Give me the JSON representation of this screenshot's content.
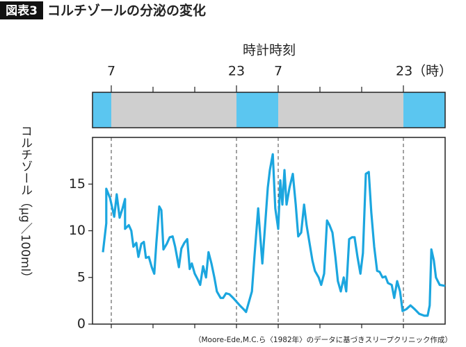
{
  "chart_data": {
    "type": "line",
    "label": "図表3",
    "title": "コルチゾールの分泌の変化",
    "xlabel": "時計時刻",
    "ylabel": "コルチゾール（μg／100ml）",
    "source": "（Moore-Ede,M.C.ら〈1982年〉のデータに基づきスリープクリニック作成）",
    "xlim": [
      -0.45,
      8
    ],
    "xticks": [
      {
        "value": 0,
        "label": "7"
      },
      {
        "value": 3,
        "label": "23"
      },
      {
        "value": 4,
        "label": "7"
      },
      {
        "value": 7,
        "label": "23（時）"
      }
    ],
    "minor_xticks": [
      1,
      2,
      5,
      6
    ],
    "ylim": [
      0,
      20
    ],
    "yticks": [
      0,
      5,
      10,
      15
    ],
    "sleep_color": "#5bc6f0",
    "awake_color": "#cfcfcf",
    "series": [
      {
        "color": "#1ba6df",
        "x": [
          -0.2,
          -0.12,
          -0.12,
          -0.03,
          0.07,
          0.13,
          0.2,
          0.27,
          0.33,
          0.33,
          0.42,
          0.48,
          0.53,
          0.6,
          0.65,
          0.72,
          0.78,
          0.83,
          0.9,
          0.97,
          1.03,
          1.08,
          1.15,
          1.2,
          1.25,
          1.33,
          1.4,
          1.47,
          1.53,
          1.62,
          1.68,
          1.75,
          1.82,
          1.88,
          1.93,
          2.0,
          2.07,
          2.13,
          2.2,
          2.27,
          2.33,
          2.4,
          2.47,
          2.53,
          2.62,
          2.68,
          2.75,
          2.83,
          2.92,
          3.0,
          3.08,
          3.17,
          3.23,
          3.3,
          3.37,
          3.43,
          3.52,
          3.57,
          3.62,
          3.68,
          3.75,
          3.8,
          3.87,
          3.93,
          4.0,
          4.05,
          4.1,
          4.15,
          4.2,
          4.27,
          4.35,
          4.42,
          4.48,
          4.55,
          4.62,
          4.68,
          4.75,
          4.82,
          4.88,
          4.97,
          5.03,
          5.1,
          5.17,
          5.23,
          5.3,
          5.37,
          5.43,
          5.5,
          5.57,
          5.63,
          5.7,
          5.77,
          5.83,
          5.9,
          5.97,
          6.03,
          6.1,
          6.17,
          6.23,
          6.3,
          6.37,
          6.43,
          6.5,
          6.57,
          6.63,
          6.72,
          6.78,
          6.85,
          6.92,
          6.98,
          7.07,
          7.17,
          7.27,
          7.38,
          7.5,
          7.58,
          7.63,
          7.67,
          7.73,
          7.78,
          7.87,
          8.0
        ],
        "values": [
          7.7,
          10.8,
          14.5,
          13.5,
          11.5,
          13.9,
          11.4,
          12.4,
          13.4,
          10.2,
          10.6,
          10.0,
          8.3,
          8.7,
          7.2,
          8.6,
          8.8,
          7.1,
          7.2,
          6.1,
          5.4,
          8.7,
          12.6,
          12.2,
          8.0,
          8.6,
          9.3,
          9.4,
          8.3,
          6.1,
          8.1,
          8.7,
          9.1,
          5.9,
          6.5,
          5.4,
          4.8,
          4.2,
          6.2,
          5.0,
          7.7,
          6.5,
          5.0,
          3.5,
          2.8,
          2.8,
          3.3,
          3.2,
          2.8,
          2.4,
          2.0,
          1.6,
          1.3,
          2.4,
          3.5,
          7.2,
          12.4,
          9.4,
          6.5,
          10.2,
          14.6,
          16.5,
          18.2,
          12.4,
          10.2,
          15.4,
          12.8,
          16.5,
          12.8,
          14.6,
          16.1,
          12.8,
          9.4,
          9.8,
          12.8,
          10.6,
          8.7,
          6.8,
          5.7,
          5.0,
          4.2,
          5.4,
          11.1,
          10.6,
          9.8,
          7.2,
          4.6,
          3.5,
          5.0,
          3.5,
          9.1,
          9.3,
          9.3,
          7.2,
          5.4,
          7.6,
          16.1,
          16.3,
          12.0,
          8.3,
          5.7,
          5.6,
          5.0,
          5.1,
          4.4,
          4.2,
          2.8,
          4.6,
          3.5,
          1.4,
          1.6,
          2.0,
          1.6,
          1.1,
          0.9,
          0.9,
          2.0,
          8.0,
          6.8,
          5.0,
          4.2,
          4.1
        ]
      }
    ]
  }
}
